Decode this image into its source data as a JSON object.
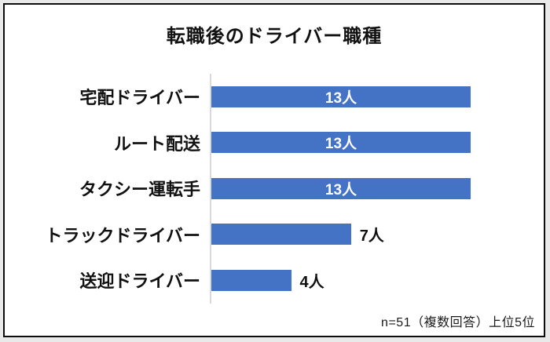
{
  "card": {
    "title": "転職後のドライバー職種",
    "note": "n=51（複数回答）上位5位"
  },
  "chart_data": {
    "type": "bar",
    "orientation": "horizontal",
    "title": "転職後のドライバー職種",
    "categories": [
      "宅配ドライバー",
      "ルート配送",
      "タクシー運転手",
      "トラックドライバー",
      "送迎ドライバー"
    ],
    "values": [
      13,
      13,
      13,
      7,
      4
    ],
    "value_labels": [
      "13人",
      "13人",
      "13人",
      "7人",
      "4人"
    ],
    "label_positions": [
      "inside",
      "inside",
      "inside",
      "outside",
      "outside"
    ],
    "unit": "人",
    "xlabel": "",
    "ylabel": "",
    "xlim": [
      0,
      13
    ],
    "grid": false,
    "legend_position": "none",
    "bar_color": "#4472c4",
    "bar_value_color_inside": "#ffffff",
    "bar_value_color_outside": "#111111",
    "axis_line_color": "#d9d9d9",
    "note": "n=51（複数回答）上位5位"
  }
}
